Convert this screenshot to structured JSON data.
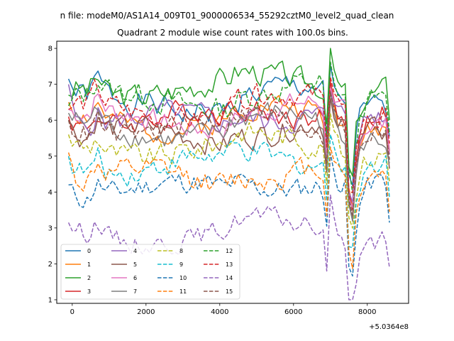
{
  "figure": {
    "suptitle": "n file: modeM0/AS1A14_009T01_9000006534_55292cztM0_level2_quad_clean",
    "background": "#ffffff"
  },
  "chart_data": {
    "type": "line",
    "title": "Quadrant 2 module wise count rates with 100.0s bins.",
    "xlabel": "",
    "ylabel": "",
    "x_offset_label": "+5.0364e8",
    "xlim": [
      -420,
      9120
    ],
    "ylim": [
      0.9,
      8.2
    ],
    "xticks": [
      0,
      2000,
      4000,
      6000,
      8000
    ],
    "xtick_labels": [
      "0",
      "2000",
      "4000",
      "6000",
      "8000"
    ],
    "yticks": [
      1,
      2,
      3,
      4,
      5,
      6,
      7,
      8
    ],
    "ytick_labels": [
      "1",
      "2",
      "3",
      "4",
      "5",
      "6",
      "7",
      "8"
    ],
    "grid": false,
    "legend": {
      "placement": "lower-left",
      "columns": 4
    },
    "x_start": -100,
    "x_step": 100,
    "n_points": 88,
    "series": [
      {
        "name": "0",
        "color": "#1f77b4",
        "style": "solid",
        "base": 6.45,
        "amp": 0.32,
        "start": 7.15,
        "seed": 1
      },
      {
        "name": "1",
        "color": "#ff7f0e",
        "style": "solid",
        "base": 5.95,
        "amp": 0.28,
        "start": 6.5,
        "seed": 2
      },
      {
        "name": "2",
        "color": "#2ca02c",
        "style": "solid",
        "base": 6.9,
        "amp": 0.32,
        "start": 6.7,
        "seed": 3
      },
      {
        "name": "3",
        "color": "#d62728",
        "style": "solid",
        "base": 6.05,
        "amp": 0.28,
        "start": 6.1,
        "seed": 4
      },
      {
        "name": "4",
        "color": "#9467bd",
        "style": "solid",
        "base": 5.95,
        "amp": 0.3,
        "start": 7.0,
        "seed": 5
      },
      {
        "name": "5",
        "color": "#8c564b",
        "style": "solid",
        "base": 5.55,
        "amp": 0.3,
        "start": 6.0,
        "seed": 6
      },
      {
        "name": "6",
        "color": "#e377c2",
        "style": "solid",
        "base": 6.0,
        "amp": 0.28,
        "start": 6.3,
        "seed": 7
      },
      {
        "name": "7",
        "color": "#7f7f7f",
        "style": "solid",
        "base": 5.7,
        "amp": 0.3,
        "start": 6.2,
        "seed": 8
      },
      {
        "name": "8",
        "color": "#bcbd22",
        "style": "dashed",
        "base": 5.2,
        "amp": 0.3,
        "start": 5.6,
        "seed": 9
      },
      {
        "name": "9",
        "color": "#17becf",
        "style": "dashed",
        "base": 4.75,
        "amp": 0.3,
        "start": 5.0,
        "seed": 10
      },
      {
        "name": "10",
        "color": "#1f77b4",
        "style": "dashed",
        "base": 4.05,
        "amp": 0.28,
        "start": 4.2,
        "seed": 11
      },
      {
        "name": "11",
        "color": "#ff7f0e",
        "style": "dashed",
        "base": 4.35,
        "amp": 0.3,
        "start": 5.1,
        "seed": 12
      },
      {
        "name": "12",
        "color": "#2ca02c",
        "style": "dashed",
        "base": 6.55,
        "amp": 0.32,
        "start": 6.4,
        "seed": 13
      },
      {
        "name": "13",
        "color": "#d62728",
        "style": "dashed",
        "base": 6.25,
        "amp": 0.3,
        "start": 6.3,
        "seed": 14
      },
      {
        "name": "14",
        "color": "#9467bd",
        "style": "dashed",
        "base": 2.8,
        "amp": 0.25,
        "start": 3.15,
        "seed": 15
      },
      {
        "name": "15",
        "color": "#8c564b",
        "style": "dashed",
        "base": 5.8,
        "amp": 0.3,
        "start": 6.0,
        "seed": 16
      }
    ]
  }
}
